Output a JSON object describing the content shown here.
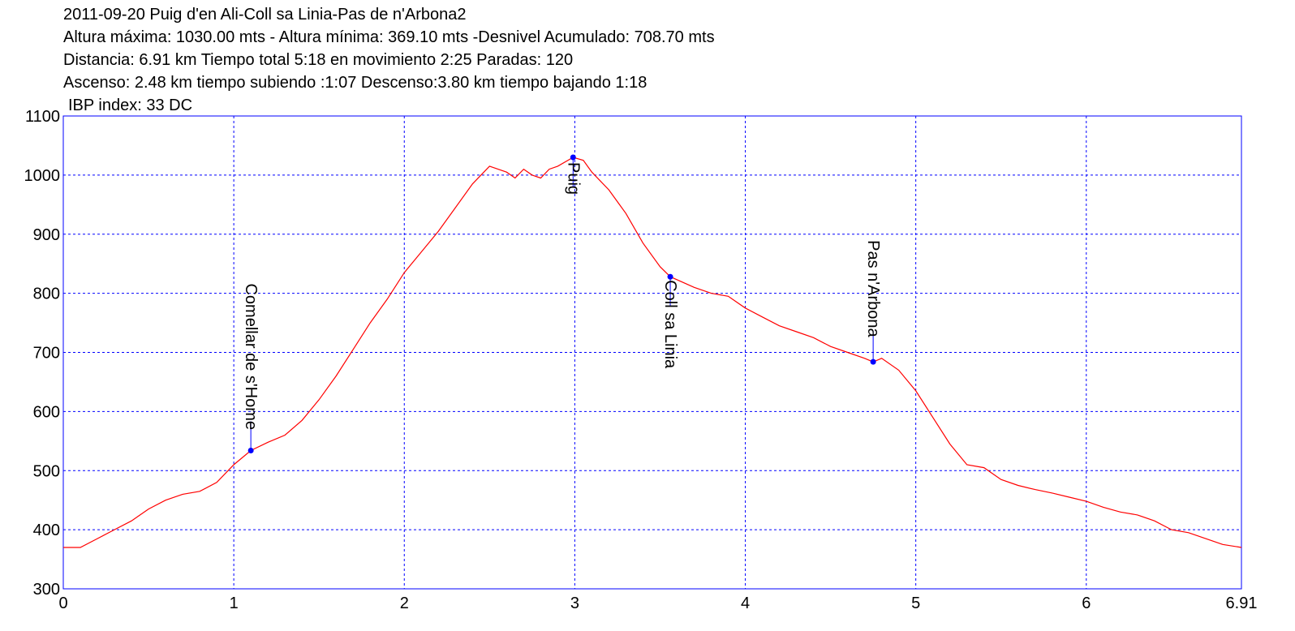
{
  "chart_data": {
    "type": "line",
    "title": "2011-09-20 Puig d'en Ali-Coll sa Linia-Pas de n'Arbona2",
    "subtitle": [
      "Altura máxima: 1030.00 mts - Altura mínima: 369.10 mts -Desnivel Acumulado: 708.70 mts",
      "Distancia: 6.91 km  Tiempo total 5:18  en movimiento 2:25 Paradas: 120",
      "Ascenso: 2.48 km  tiempo subiendo :1:07  Descenso:3.80 km tiempo bajando 1:18",
      "IBP index: 33 DC"
    ],
    "x": [
      0,
      0.1,
      0.2,
      0.3,
      0.4,
      0.5,
      0.6,
      0.7,
      0.8,
      0.9,
      1.0,
      1.1,
      1.2,
      1.3,
      1.4,
      1.5,
      1.6,
      1.7,
      1.8,
      1.9,
      2.0,
      2.1,
      2.2,
      2.3,
      2.4,
      2.5,
      2.55,
      2.6,
      2.65,
      2.7,
      2.75,
      2.8,
      2.85,
      2.9,
      2.99,
      3.05,
      3.1,
      3.2,
      3.3,
      3.4,
      3.5,
      3.56,
      3.7,
      3.8,
      3.9,
      4.0,
      4.1,
      4.2,
      4.3,
      4.4,
      4.5,
      4.6,
      4.7,
      4.75,
      4.8,
      4.9,
      5.0,
      5.1,
      5.2,
      5.3,
      5.4,
      5.5,
      5.6,
      5.7,
      5.8,
      5.9,
      6.0,
      6.1,
      6.2,
      6.3,
      6.4,
      6.5,
      6.6,
      6.7,
      6.8,
      6.91
    ],
    "series": [
      {
        "color": "#ff0000",
        "values": [
          370,
          370,
          385,
          400,
          415,
          435,
          450,
          460,
          465,
          480,
          510,
          534,
          548,
          560,
          585,
          620,
          660,
          705,
          750,
          790,
          835,
          870,
          905,
          945,
          985,
          1015,
          1010,
          1005,
          995,
          1010,
          1000,
          995,
          1010,
          1015,
          1030,
          1025,
          1005,
          975,
          935,
          885,
          845,
          828,
          810,
          800,
          795,
          775,
          760,
          745,
          735,
          725,
          710,
          700,
          690,
          684,
          690,
          670,
          635,
          590,
          545,
          510,
          505,
          485,
          475,
          468,
          462,
          455,
          448,
          438,
          430,
          425,
          415,
          400,
          395,
          385,
          375,
          370
        ]
      }
    ],
    "annotations": [
      {
        "label": "Comellar de s'Home",
        "x": 1.1,
        "y": 534
      },
      {
        "label": "Puig",
        "x": 2.99,
        "y": 1030
      },
      {
        "label": "Coll sa Linia",
        "x": 3.56,
        "y": 828
      },
      {
        "label": "Pas n'Arbona",
        "x": 4.75,
        "y": 684
      }
    ],
    "annotation_color": "#0000ff",
    "xlim": [
      0,
      6.91
    ],
    "xticks": [
      0,
      1,
      2,
      3,
      4,
      5,
      6,
      6.91
    ],
    "ylim": [
      300,
      1100
    ],
    "yticks": [
      300,
      400,
      500,
      600,
      700,
      800,
      900,
      1000,
      1100
    ],
    "grid": true,
    "grid_color": "#0000ff"
  }
}
